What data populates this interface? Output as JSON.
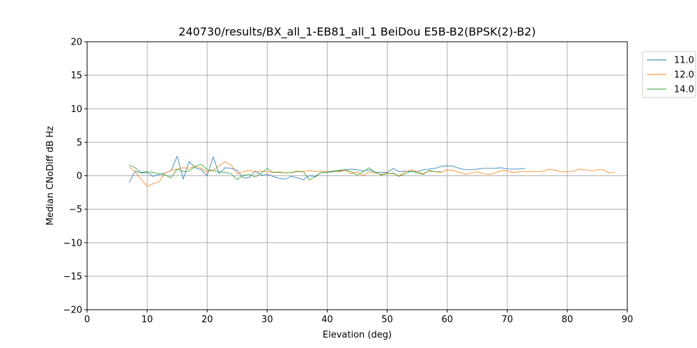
{
  "chart_data": {
    "type": "line",
    "title": "240730/results/BX_all_1-EB81_all_1 BeiDou E5B-B2(BPSK(2)-B2)",
    "xlabel": "Elevation (deg)",
    "ylabel": "Median CNoDiff dB Hz",
    "xlim": [
      0,
      90
    ],
    "ylim": [
      -20,
      20
    ],
    "xticks": [
      0,
      10,
      20,
      30,
      40,
      50,
      60,
      70,
      80,
      90
    ],
    "yticks": [
      -20,
      -15,
      -10,
      -5,
      0,
      5,
      10,
      15,
      20
    ],
    "grid": true,
    "legend_position": "outside-top-right",
    "series": [
      {
        "name": "11.0",
        "color": "#1f77b4",
        "points": [
          [
            7,
            -1.0
          ],
          [
            8,
            0.7
          ],
          [
            9,
            0.4
          ],
          [
            10,
            0.5
          ],
          [
            11,
            -0.1
          ],
          [
            12,
            0.2
          ],
          [
            13,
            0.4
          ],
          [
            14,
            0.8
          ],
          [
            15,
            2.9
          ],
          [
            16,
            -0.5
          ],
          [
            17,
            2.1
          ],
          [
            18,
            1.2
          ],
          [
            19,
            0.9
          ],
          [
            20,
            0.0
          ],
          [
            21,
            2.8
          ],
          [
            22,
            0.3
          ],
          [
            23,
            1.2
          ],
          [
            24,
            1.1
          ],
          [
            25,
            0.8
          ],
          [
            26,
            -0.3
          ],
          [
            27,
            -0.3
          ],
          [
            28,
            0.7
          ],
          [
            29,
            0.1
          ],
          [
            30,
            0.2
          ],
          [
            31,
            -0.1
          ],
          [
            32,
            -0.4
          ],
          [
            33,
            -0.5
          ],
          [
            34,
            -0.1
          ],
          [
            35,
            -0.3
          ],
          [
            36,
            -0.6
          ],
          [
            37,
            0.0
          ],
          [
            38,
            -0.1
          ],
          [
            39,
            0.5
          ],
          [
            40,
            0.5
          ],
          [
            41,
            0.6
          ],
          [
            42,
            0.7
          ],
          [
            43,
            0.9
          ],
          [
            44,
            1.0
          ],
          [
            45,
            0.9
          ],
          [
            46,
            0.7
          ],
          [
            47,
            0.9
          ],
          [
            48,
            0.5
          ],
          [
            49,
            0.5
          ],
          [
            50,
            0.5
          ],
          [
            51,
            1.1
          ],
          [
            52,
            0.6
          ],
          [
            53,
            0.7
          ],
          [
            54,
            0.6
          ],
          [
            55,
            0.6
          ],
          [
            56,
            0.9
          ],
          [
            57,
            1.0
          ],
          [
            58,
            1.1
          ],
          [
            59,
            1.4
          ],
          [
            60,
            1.5
          ],
          [
            61,
            1.4
          ],
          [
            62,
            1.1
          ],
          [
            63,
            0.9
          ],
          [
            64,
            0.9
          ],
          [
            65,
            1.0
          ],
          [
            66,
            1.1
          ],
          [
            67,
            1.1
          ],
          [
            68,
            1.1
          ],
          [
            69,
            1.2
          ],
          [
            70,
            1.0
          ],
          [
            71,
            1.0
          ],
          [
            72,
            1.0
          ],
          [
            73,
            1.1
          ]
        ]
      },
      {
        "name": "12.0",
        "color": "#ff7f0e",
        "points": [
          [
            7,
            1.3
          ],
          [
            8,
            0.6
          ],
          [
            9,
            -0.5
          ],
          [
            10,
            -1.6
          ],
          [
            11,
            -1.2
          ],
          [
            12,
            -0.9
          ],
          [
            13,
            0.4
          ],
          [
            14,
            0.8
          ],
          [
            15,
            1.0
          ],
          [
            16,
            1.2
          ],
          [
            17,
            1.1
          ],
          [
            18,
            1.4
          ],
          [
            19,
            1.1
          ],
          [
            20,
            0.6
          ],
          [
            21,
            0.8
          ],
          [
            22,
            1.5
          ],
          [
            23,
            2.1
          ],
          [
            24,
            1.6
          ],
          [
            25,
            0.3
          ],
          [
            26,
            0.6
          ],
          [
            27,
            0.8
          ],
          [
            28,
            0.6
          ],
          [
            29,
            0.7
          ],
          [
            30,
            0.6
          ],
          [
            31,
            0.5
          ],
          [
            32,
            0.6
          ],
          [
            33,
            0.4
          ],
          [
            34,
            0.5
          ],
          [
            35,
            0.7
          ],
          [
            36,
            0.6
          ],
          [
            37,
            0.8
          ],
          [
            38,
            0.6
          ],
          [
            39,
            0.7
          ],
          [
            40,
            0.6
          ],
          [
            41,
            0.7
          ],
          [
            42,
            0.6
          ],
          [
            43,
            0.8
          ],
          [
            44,
            0.3
          ],
          [
            45,
            0.6
          ],
          [
            46,
            0.0
          ],
          [
            47,
            0.6
          ],
          [
            48,
            0.4
          ],
          [
            49,
            0.2
          ],
          [
            50,
            0.4
          ],
          [
            51,
            0.3
          ],
          [
            52,
            0.0
          ],
          [
            53,
            0.6
          ],
          [
            54,
            0.9
          ],
          [
            55,
            0.6
          ],
          [
            56,
            0.3
          ],
          [
            57,
            0.7
          ],
          [
            58,
            0.6
          ],
          [
            59,
            0.5
          ],
          [
            60,
            0.9
          ],
          [
            61,
            0.8
          ],
          [
            62,
            0.5
          ],
          [
            63,
            0.2
          ],
          [
            64,
            0.4
          ],
          [
            65,
            0.6
          ],
          [
            66,
            0.3
          ],
          [
            67,
            0.2
          ],
          [
            68,
            0.4
          ],
          [
            69,
            0.8
          ],
          [
            70,
            0.7
          ],
          [
            71,
            0.5
          ],
          [
            72,
            0.6
          ],
          [
            73,
            0.6
          ],
          [
            74,
            0.6
          ],
          [
            75,
            0.6
          ],
          [
            76,
            0.7
          ],
          [
            77,
            1.0
          ],
          [
            78,
            0.8
          ],
          [
            79,
            0.6
          ],
          [
            80,
            0.6
          ],
          [
            81,
            0.7
          ],
          [
            82,
            1.0
          ],
          [
            83,
            0.9
          ],
          [
            84,
            0.7
          ],
          [
            85,
            0.9
          ],
          [
            86,
            0.9
          ],
          [
            87,
            0.4
          ],
          [
            88,
            0.6
          ]
        ]
      },
      {
        "name": "14.0",
        "color": "#2ca02c",
        "points": [
          [
            7,
            1.6
          ],
          [
            8,
            1.2
          ],
          [
            9,
            0.5
          ],
          [
            10,
            0.6
          ],
          [
            11,
            0.5
          ],
          [
            12,
            0.3
          ],
          [
            13,
            0.1
          ],
          [
            14,
            -0.3
          ],
          [
            15,
            1.0
          ],
          [
            16,
            0.6
          ],
          [
            17,
            0.7
          ],
          [
            18,
            1.4
          ],
          [
            19,
            1.7
          ],
          [
            20,
            0.9
          ],
          [
            21,
            0.8
          ],
          [
            22,
            0.6
          ],
          [
            23,
            0.5
          ],
          [
            24,
            0.3
          ],
          [
            25,
            -0.6
          ],
          [
            26,
            0.1
          ],
          [
            27,
            0.2
          ],
          [
            28,
            -0.2
          ],
          [
            29,
            0.4
          ],
          [
            30,
            1.1
          ],
          [
            31,
            0.5
          ],
          [
            32,
            0.5
          ],
          [
            33,
            0.4
          ],
          [
            34,
            0.5
          ],
          [
            35,
            0.6
          ],
          [
            36,
            0.6
          ],
          [
            37,
            -0.6
          ],
          [
            38,
            -0.2
          ],
          [
            39,
            0.5
          ],
          [
            40,
            0.5
          ],
          [
            41,
            0.7
          ],
          [
            42,
            0.8
          ],
          [
            43,
            0.9
          ],
          [
            44,
            0.6
          ],
          [
            45,
            0.1
          ],
          [
            46,
            0.6
          ],
          [
            47,
            1.2
          ],
          [
            48,
            0.5
          ],
          [
            49,
            0.1
          ],
          [
            50,
            0.3
          ],
          [
            51,
            0.4
          ],
          [
            52,
            -0.1
          ],
          [
            53,
            0.3
          ],
          [
            54,
            0.7
          ],
          [
            55,
            0.4
          ],
          [
            56,
            0.2
          ],
          [
            57,
            0.8
          ],
          [
            58,
            0.6
          ],
          [
            59,
            0.6
          ]
        ]
      }
    ]
  }
}
